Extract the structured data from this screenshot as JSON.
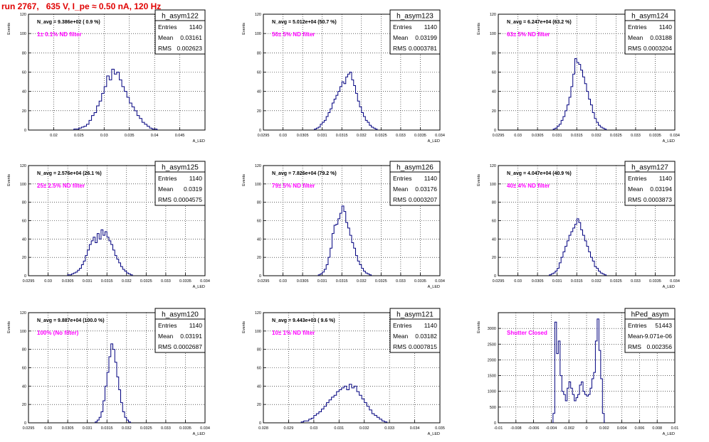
{
  "run_title": "run 2767,   635 V, I_pe ≈ 0.50 nA, 120 Hz",
  "colors": {
    "histogram": "#00007f",
    "annotation": "#ff00ff",
    "title": "#e00000",
    "grid": "#000000"
  },
  "stat_labels": {
    "entries": "Entries",
    "mean": "Mean",
    "rms": "RMS"
  },
  "chart_data": [
    {
      "type": "histogram",
      "name": "h_asym122",
      "stats": {
        "entries": "1140",
        "mean": "0.03161",
        "rms": "0.002623"
      },
      "navg_text": "N_avg = 9.386e+02 ( 0.9 %)",
      "annotation": "1± 0.1% ND filter",
      "ylabel": "Events",
      "xlabel": "A_LED",
      "xlim": [
        0.015,
        0.05
      ],
      "ylim": [
        0,
        120
      ],
      "xticks": [
        "0.02",
        "0.025",
        "0.03",
        "0.035",
        "0.04",
        "0.045"
      ],
      "xtick_values": [
        0.02,
        0.025,
        0.03,
        0.035,
        0.04,
        0.045
      ],
      "yticks": [
        0,
        20,
        40,
        60,
        80,
        100,
        120
      ],
      "grid": true,
      "bin_lo": 0.024,
      "bin_w": 0.0005,
      "values": [
        1,
        1,
        2,
        3,
        4,
        6,
        10,
        15,
        18,
        25,
        30,
        38,
        45,
        56,
        52,
        63,
        58,
        60,
        52,
        45,
        40,
        34,
        28,
        24,
        20,
        15,
        12,
        8,
        6,
        4,
        2,
        1,
        1
      ]
    },
    {
      "type": "histogram",
      "name": "h_asym123",
      "stats": {
        "entries": "1140",
        "mean": "0.03199",
        "rms": "0.0003781"
      },
      "navg_text": "N_avg = 5.012e+04 (50.7 %)",
      "annotation": "50± 5% ND filter",
      "ylabel": "Events",
      "xlabel": "A_LED",
      "xlim": [
        0.0295,
        0.034
      ],
      "ylim": [
        0,
        120
      ],
      "xticks": [
        "0.0295",
        "0.03",
        "0.0305",
        "0.031",
        "0.0315",
        "0.032",
        "0.0325",
        "0.033",
        "0.0335",
        "0.034"
      ],
      "xtick_values": [
        0.0295,
        0.03,
        0.0305,
        0.031,
        0.0315,
        0.032,
        0.0325,
        0.033,
        0.0335,
        0.034
      ],
      "yticks": [
        0,
        20,
        40,
        60,
        80,
        100,
        120
      ],
      "grid": true,
      "bin_lo": 0.0308,
      "bin_w": 5e-05,
      "values": [
        1,
        2,
        3,
        6,
        8,
        10,
        14,
        18,
        22,
        28,
        32,
        36,
        40,
        45,
        50,
        48,
        55,
        58,
        60,
        52,
        46,
        38,
        30,
        24,
        18,
        14,
        10,
        8,
        5,
        3,
        2,
        1
      ]
    },
    {
      "type": "histogram",
      "name": "h_asym124",
      "stats": {
        "entries": "1140",
        "mean": "0.03188",
        "rms": "0.0003204"
      },
      "navg_text": "N_avg = 6.247e+04 (63.2 %)",
      "annotation": "63± 5% ND filter",
      "ylabel": "Events",
      "xlabel": "A_LED",
      "xlim": [
        0.0295,
        0.034
      ],
      "ylim": [
        0,
        120
      ],
      "xticks": [
        "0.0295",
        "0.03",
        "0.0305",
        "0.031",
        "0.0315",
        "0.032",
        "0.0325",
        "0.033",
        "0.0335",
        "0.034"
      ],
      "xtick_values": [
        0.0295,
        0.03,
        0.0305,
        0.031,
        0.0315,
        0.032,
        0.0325,
        0.033,
        0.0335,
        0.034
      ],
      "yticks": [
        0,
        20,
        40,
        60,
        80,
        100,
        120
      ],
      "grid": true,
      "bin_lo": 0.0309,
      "bin_w": 5e-05,
      "values": [
        1,
        2,
        4,
        6,
        10,
        14,
        20,
        26,
        34,
        45,
        58,
        74,
        70,
        68,
        62,
        55,
        48,
        40,
        32,
        26,
        18,
        12,
        8,
        5,
        3,
        2,
        1
      ]
    },
    {
      "type": "histogram",
      "name": "h_asym125",
      "stats": {
        "entries": "1140",
        "mean": "0.0319",
        "rms": "0.0004575"
      },
      "navg_text": "N_avg = 2.576e+04 (26.1 %)",
      "annotation": "25± 2.5% ND filter",
      "ylabel": "Events",
      "xlabel": "A_LED",
      "xlim": [
        0.0295,
        0.034
      ],
      "ylim": [
        0,
        120
      ],
      "xticks": [
        "0.0295",
        "0.03",
        "0.0305",
        "0.031",
        "0.0315",
        "0.032",
        "0.0325",
        "0.033",
        "0.0335",
        "0.034"
      ],
      "xtick_values": [
        0.0295,
        0.03,
        0.0305,
        0.031,
        0.0315,
        0.032,
        0.0325,
        0.033,
        0.0335,
        0.034
      ],
      "yticks": [
        0,
        20,
        40,
        60,
        80,
        100,
        120
      ],
      "grid": true,
      "bin_lo": 0.0305,
      "bin_w": 5e-05,
      "values": [
        1,
        1,
        2,
        3,
        4,
        6,
        8,
        12,
        16,
        22,
        28,
        34,
        38,
        42,
        36,
        46,
        40,
        50,
        44,
        48,
        42,
        38,
        34,
        28,
        22,
        18,
        14,
        10,
        7,
        5,
        3,
        2,
        1
      ]
    },
    {
      "type": "histogram",
      "name": "h_asym126",
      "stats": {
        "entries": "1140",
        "mean": "0.03176",
        "rms": "0.0003207"
      },
      "navg_text": "N_avg = 7.826e+04 (79.2 %)",
      "annotation": "79± 5% ND filter",
      "ylabel": "Events",
      "xlabel": "A_LED",
      "xlim": [
        0.0295,
        0.034
      ],
      "ylim": [
        0,
        120
      ],
      "xticks": [
        "0.0295",
        "0.03",
        "0.0305",
        "0.031",
        "0.0315",
        "0.032",
        "0.0325",
        "0.033",
        "0.0335",
        "0.034"
      ],
      "xtick_values": [
        0.0295,
        0.03,
        0.0305,
        0.031,
        0.0315,
        0.032,
        0.0325,
        0.033,
        0.0335,
        0.034
      ],
      "yticks": [
        0,
        20,
        40,
        60,
        80,
        100,
        120
      ],
      "grid": true,
      "bin_lo": 0.0309,
      "bin_w": 5e-05,
      "values": [
        1,
        2,
        4,
        7,
        12,
        20,
        30,
        46,
        55,
        56,
        62,
        68,
        76,
        70,
        58,
        52,
        44,
        36,
        30,
        22,
        16,
        12,
        8,
        5,
        3,
        2,
        1
      ]
    },
    {
      "type": "histogram",
      "name": "h_asym127",
      "stats": {
        "entries": "1140",
        "mean": "0.03194",
        "rms": "0.0003873"
      },
      "navg_text": "N_avg = 4.047e+04 (40.9 %)",
      "annotation": "40± 4% ND filter",
      "ylabel": "Events",
      "xlabel": "A_LED",
      "xlim": [
        0.0295,
        0.034
      ],
      "ylim": [
        0,
        120
      ],
      "xticks": [
        "0.0295",
        "0.03",
        "0.0305",
        "0.031",
        "0.0315",
        "0.032",
        "0.0325",
        "0.033",
        "0.0335",
        "0.034"
      ],
      "xtick_values": [
        0.0295,
        0.03,
        0.0305,
        0.031,
        0.0315,
        0.032,
        0.0325,
        0.033,
        0.0335,
        0.034
      ],
      "yticks": [
        0,
        20,
        40,
        60,
        80,
        100,
        120
      ],
      "grid": true,
      "bin_lo": 0.0308,
      "bin_w": 5e-05,
      "values": [
        1,
        2,
        3,
        5,
        8,
        14,
        20,
        26,
        32,
        38,
        44,
        48,
        52,
        56,
        62,
        58,
        50,
        44,
        38,
        32,
        26,
        20,
        16,
        10,
        8,
        5,
        3,
        2,
        1
      ]
    },
    {
      "type": "histogram",
      "name": "h_asym120",
      "stats": {
        "entries": "1140",
        "mean": "0.03191",
        "rms": "0.0002687"
      },
      "navg_text": "N_avg = 9.887e+04 (100.0 %)",
      "annotation": "100% (No filter)",
      "ylabel": "Events",
      "xlabel": "A_LED",
      "xlim": [
        0.0295,
        0.034
      ],
      "ylim": [
        0,
        120
      ],
      "xticks": [
        "0.0295",
        "0.03",
        "0.0305",
        "0.031",
        "0.0315",
        "0.032",
        "0.0325",
        "0.033",
        "0.0335",
        "0.034"
      ],
      "xtick_values": [
        0.0295,
        0.03,
        0.0305,
        0.031,
        0.0315,
        0.032,
        0.0325,
        0.033,
        0.0335,
        0.034
      ],
      "yticks": [
        0,
        20,
        40,
        60,
        80,
        100,
        120
      ],
      "grid": true,
      "bin_lo": 0.0312,
      "bin_w": 5e-05,
      "values": [
        1,
        3,
        6,
        12,
        24,
        40,
        55,
        72,
        86,
        80,
        66,
        50,
        36,
        22,
        12,
        6,
        3,
        1
      ]
    },
    {
      "type": "histogram",
      "name": "h_asym121",
      "stats": {
        "entries": "1140",
        "mean": "0.03182",
        "rms": "0.0007815"
      },
      "navg_text": "N_avg = 9.443e+03 ( 9.6 %)",
      "annotation": "10± 1% ND filter",
      "ylabel": "Events",
      "xlabel": "A_LED",
      "xlim": [
        0.028,
        0.035
      ],
      "ylim": [
        0,
        120
      ],
      "xticks": [
        "0.028",
        "0.029",
        "0.03",
        "0.031",
        "0.032",
        "0.033",
        "0.034",
        "0.035"
      ],
      "xtick_values": [
        0.028,
        0.029,
        0.03,
        0.031,
        0.032,
        0.033,
        0.034,
        0.035
      ],
      "yticks": [
        0,
        20,
        40,
        60,
        80,
        100,
        120
      ],
      "grid": true,
      "bin_lo": 0.0295,
      "bin_w": 0.0001,
      "values": [
        1,
        2,
        2,
        4,
        5,
        8,
        10,
        12,
        15,
        18,
        22,
        25,
        28,
        30,
        34,
        36,
        38,
        40,
        36,
        42,
        38,
        40,
        34,
        30,
        26,
        22,
        18,
        14,
        10,
        8,
        6,
        4,
        2,
        1
      ]
    },
    {
      "type": "histogram",
      "name": "hPed_asym",
      "stats": {
        "entries": "51443",
        "mean": "-9.071e-06",
        "rms": "0.002356"
      },
      "navg_text": "",
      "annotation": "Shutter Closed",
      "ylabel": "Events",
      "xlabel": "A_LED",
      "xlim": [
        -0.01,
        0.01
      ],
      "ylim": [
        0,
        3500
      ],
      "xticks": [
        "-0.01",
        "-0.008",
        "-0.006",
        "-0.004",
        "-0.002",
        "0",
        "0.002",
        "0.004",
        "0.006",
        "0.008",
        "0.01"
      ],
      "xtick_values": [
        -0.01,
        -0.008,
        -0.006,
        -0.004,
        -0.002,
        0,
        0.002,
        0.004,
        0.006,
        0.008,
        0.01
      ],
      "yticks": [
        0,
        500,
        1000,
        1500,
        2000,
        2500,
        3000
      ],
      "grid": true,
      "bin_lo": -0.0038,
      "bin_w": 0.0002,
      "values": [
        300,
        3200,
        2200,
        2600,
        1500,
        1000,
        900,
        700,
        1100,
        1300,
        1100,
        900,
        700,
        800,
        900,
        1200,
        1300,
        1000,
        900,
        850,
        900,
        1100,
        1400,
        1600,
        2600,
        3300,
        2300,
        1400,
        300
      ]
    }
  ]
}
